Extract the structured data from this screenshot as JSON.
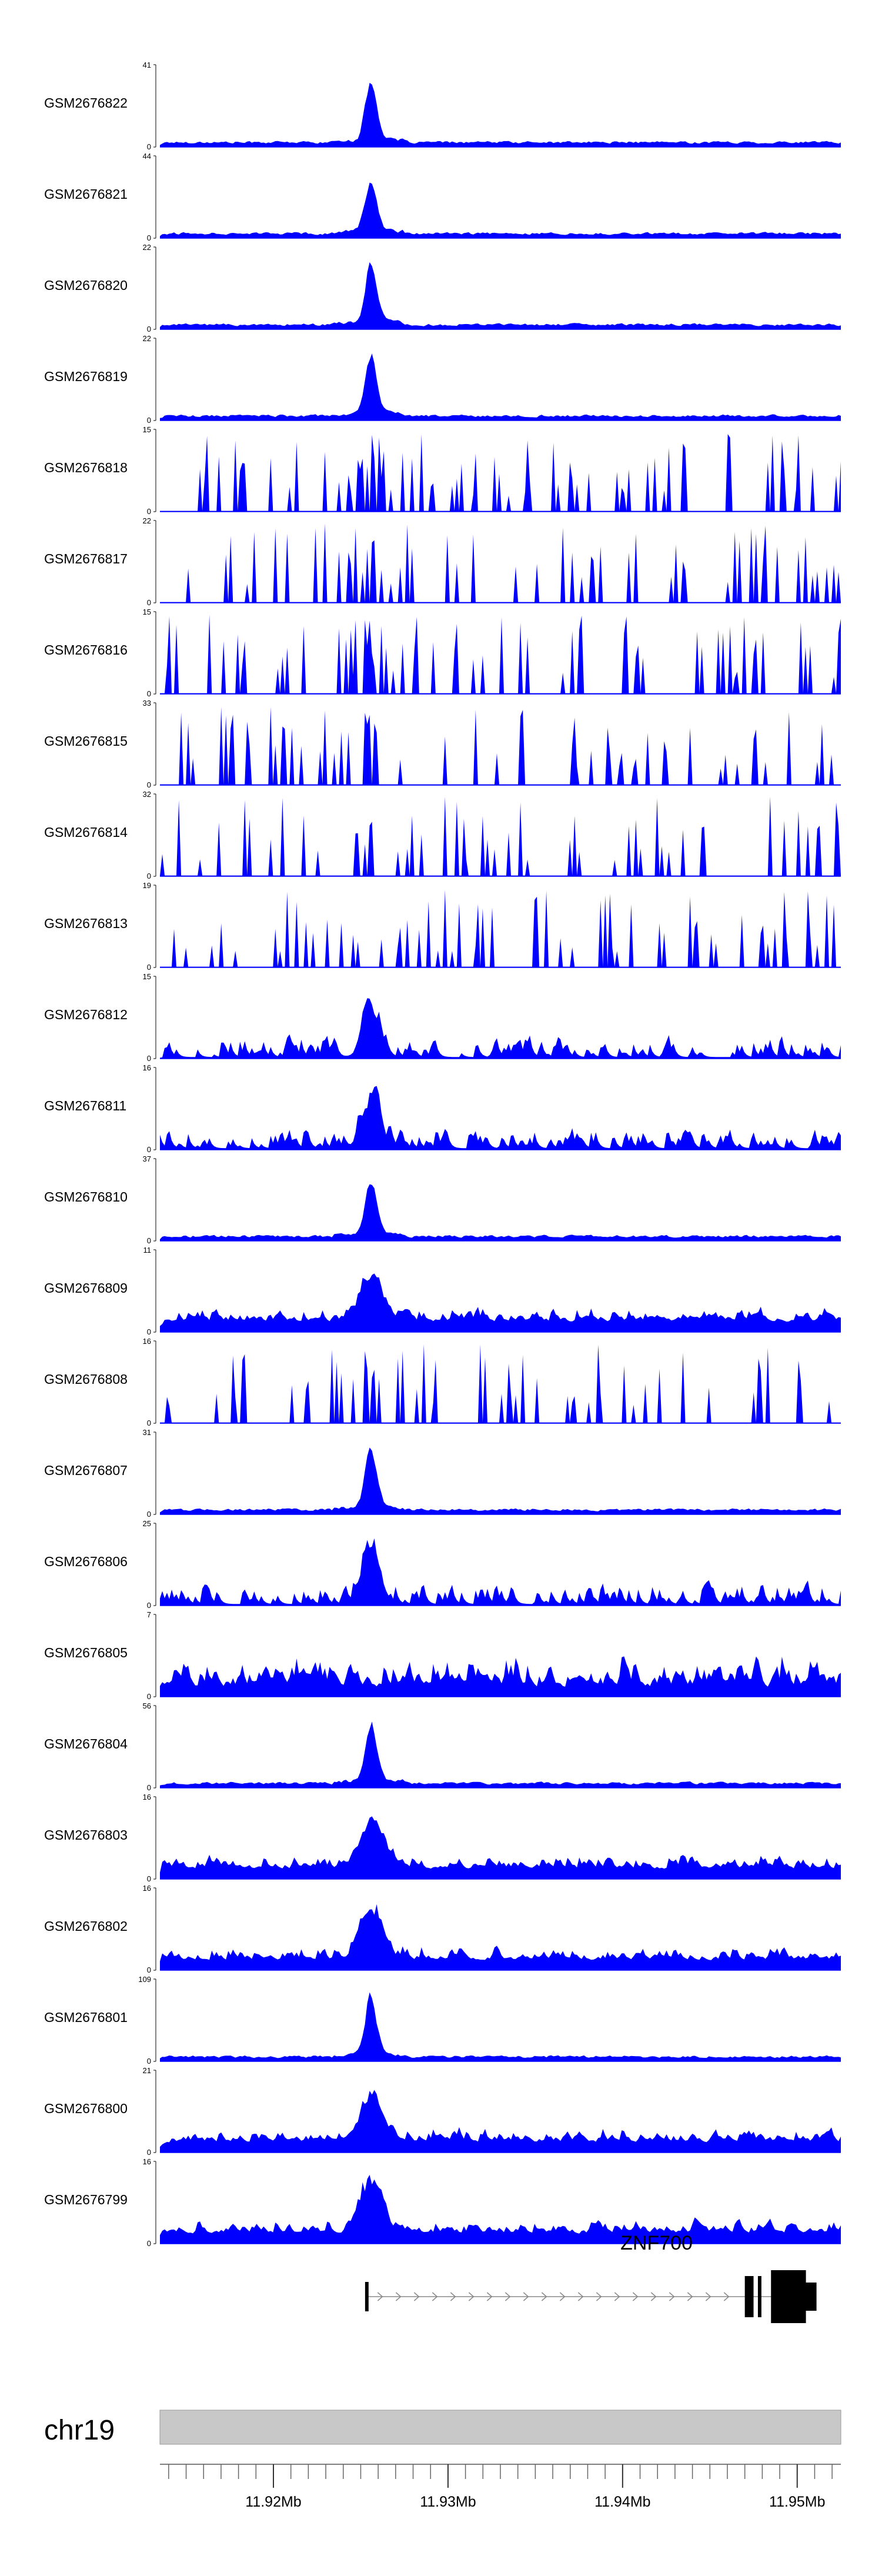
{
  "chart_data": {
    "type": "area",
    "title": "",
    "chromosome": "chr19",
    "xlim": [
      11.9135,
      11.9525
    ],
    "x_unit": "Mb",
    "axis_ticks": [
      {
        "value": 11.92,
        "label": "11.92Mb"
      },
      {
        "value": 11.93,
        "label": "11.93Mb"
      },
      {
        "value": 11.94,
        "label": "11.94Mb"
      },
      {
        "value": 11.95,
        "label": "11.95Mb"
      }
    ],
    "minor_tick_step": 0.001,
    "colors": {
      "signal": "#0000ff",
      "ideogram": "#c8c8c8",
      "gene": "#000000"
    },
    "tracks": [
      {
        "name": "GSM2676822",
        "ymin": 0,
        "ymax": 41,
        "profile": "sharp"
      },
      {
        "name": "GSM2676821",
        "ymin": 0,
        "ymax": 44,
        "profile": "sharp"
      },
      {
        "name": "GSM2676820",
        "ymin": 0,
        "ymax": 22,
        "profile": "sharp"
      },
      {
        "name": "GSM2676819",
        "ymin": 0,
        "ymax": 22,
        "profile": "sharp"
      },
      {
        "name": "GSM2676818",
        "ymin": 0,
        "ymax": 15,
        "profile": "sparse"
      },
      {
        "name": "GSM2676817",
        "ymin": 0,
        "ymax": 22,
        "profile": "sparse"
      },
      {
        "name": "GSM2676816",
        "ymin": 0,
        "ymax": 15,
        "profile": "sparse"
      },
      {
        "name": "GSM2676815",
        "ymin": 0,
        "ymax": 33,
        "profile": "sparse"
      },
      {
        "name": "GSM2676814",
        "ymin": 0,
        "ymax": 32,
        "profile": "sparse"
      },
      {
        "name": "GSM2676813",
        "ymin": 0,
        "ymax": 19,
        "profile": "sparse"
      },
      {
        "name": "GSM2676812",
        "ymin": 0,
        "ymax": 15,
        "profile": "medium"
      },
      {
        "name": "GSM2676811",
        "ymin": 0,
        "ymax": 16,
        "profile": "medium"
      },
      {
        "name": "GSM2676810",
        "ymin": 0,
        "ymax": 37,
        "profile": "sharp"
      },
      {
        "name": "GSM2676809",
        "ymin": 0,
        "ymax": 11,
        "profile": "dense"
      },
      {
        "name": "GSM2676808",
        "ymin": 0,
        "ymax": 16,
        "profile": "sparse"
      },
      {
        "name": "GSM2676807",
        "ymin": 0,
        "ymax": 31,
        "profile": "sharp"
      },
      {
        "name": "GSM2676806",
        "ymin": 0,
        "ymax": 25,
        "profile": "medium"
      },
      {
        "name": "GSM2676805",
        "ymin": 0,
        "ymax": 7,
        "profile": "noisy"
      },
      {
        "name": "GSM2676804",
        "ymin": 0,
        "ymax": 56,
        "profile": "sharp"
      },
      {
        "name": "GSM2676803",
        "ymin": 0,
        "ymax": 16,
        "profile": "dense"
      },
      {
        "name": "GSM2676802",
        "ymin": 0,
        "ymax": 16,
        "profile": "dense"
      },
      {
        "name": "GSM2676801",
        "ymin": 0,
        "ymax": 109,
        "profile": "sharp"
      },
      {
        "name": "GSM2676800",
        "ymin": 0,
        "ymax": 21,
        "profile": "dense"
      },
      {
        "name": "GSM2676799",
        "ymin": 0,
        "ymax": 16,
        "profile": "dense"
      }
    ],
    "peak_position": 11.9255,
    "gene": {
      "name": "ZNF700",
      "start": 11.9253,
      "end": 11.9505,
      "strand": "+",
      "exons": [
        {
          "start": 11.92525,
          "end": 11.92545
        },
        {
          "start": 11.947,
          "end": 11.9475
        },
        {
          "start": 11.94775,
          "end": 11.94795
        },
        {
          "start": 11.9485,
          "end": 11.9505
        }
      ]
    }
  }
}
